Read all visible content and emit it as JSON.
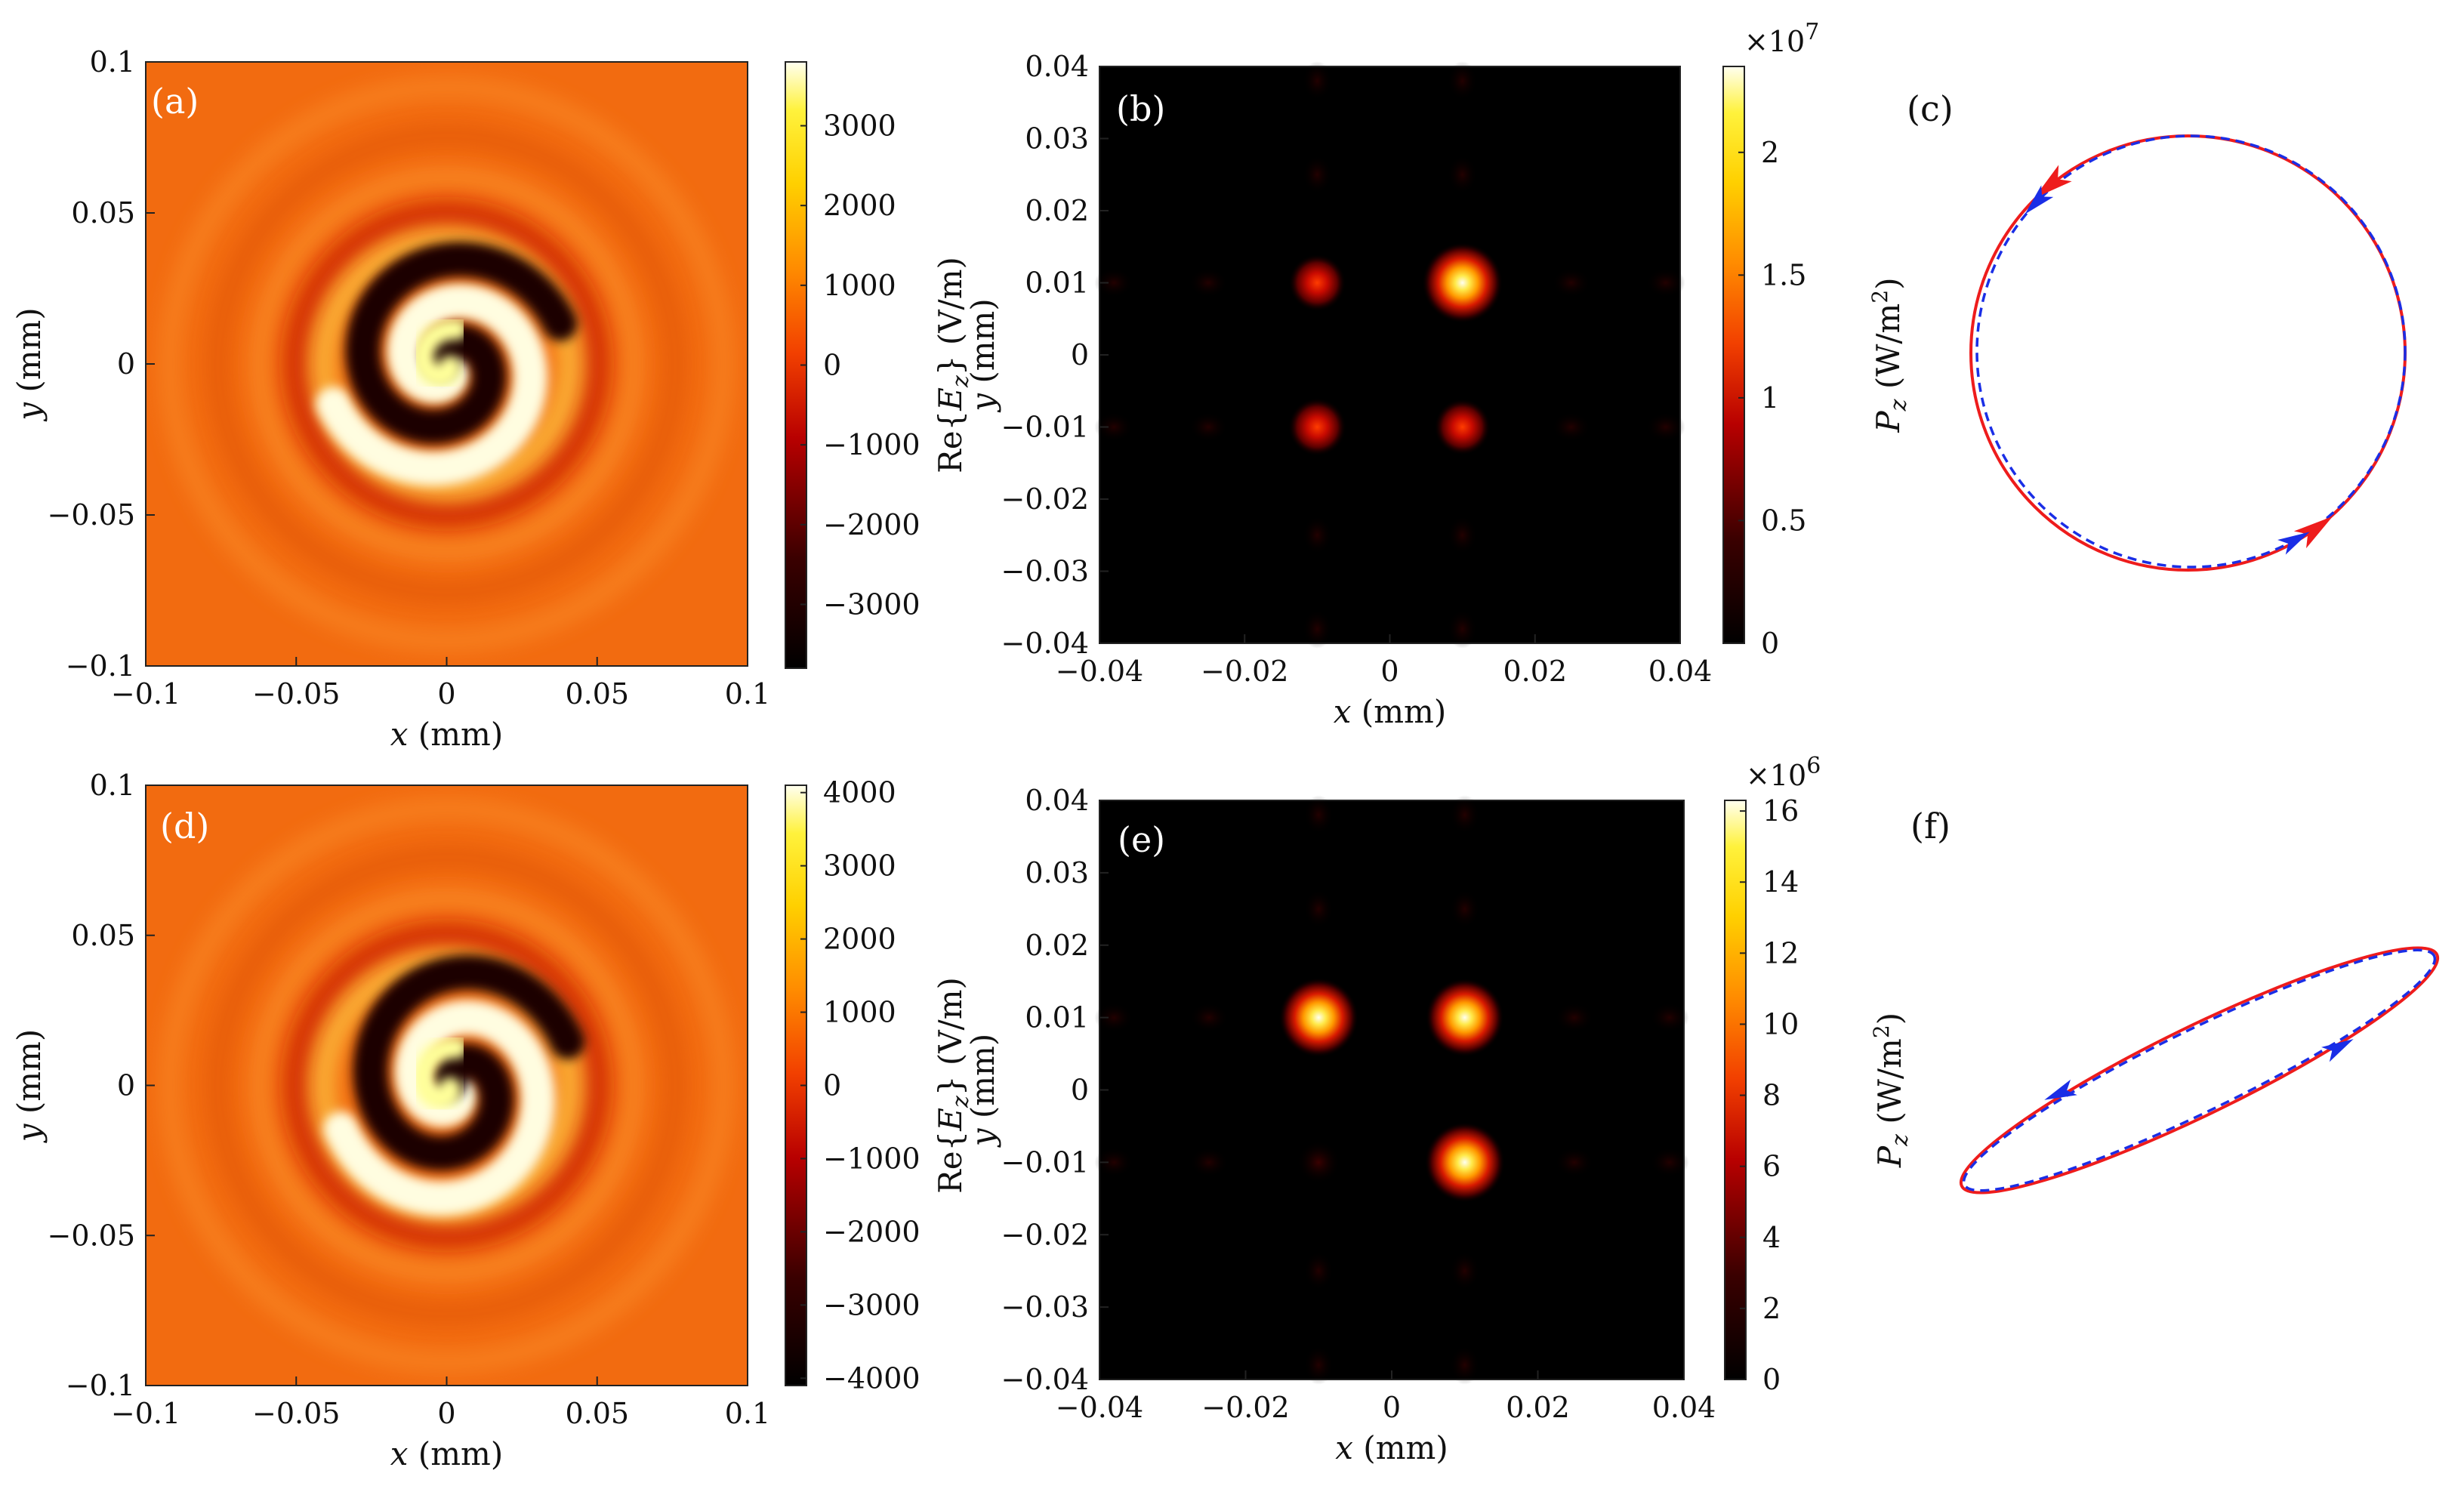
{
  "figure_id": "spiral-field-figure",
  "colors": {
    "ring_background": "#f26b10",
    "curve_red": "#ee1c1c",
    "curve_blue": "#1a2ee6",
    "heat_black": "#000000",
    "heat_white": "#fffff0"
  },
  "chart_data": [
    {
      "panel": "(a)",
      "type": "heatmap",
      "description_kind": "spiral_field_map",
      "title": "",
      "xlabel_var": "x",
      "xlabel_unit": " (mm)",
      "ylabel_var": "y",
      "ylabel_unit": " (mm)",
      "xlim": [
        -0.1,
        0.1
      ],
      "ylim": [
        -0.1,
        0.1
      ],
      "xticks": [
        "−0.1",
        "−0.05",
        "0",
        "0.05",
        "0.1"
      ],
      "yticks": [
        "0.1",
        "0.05",
        "0",
        "−0.05",
        "−0.1"
      ],
      "colorbar": {
        "label_pre": "Re{",
        "label_var": "E",
        "label_sub": "z",
        "label_post": "} (V/m)",
        "range": [
          -3800,
          3800
        ],
        "ticks": [
          "3000",
          "2000",
          "1000",
          "0",
          "−1000",
          "−2000",
          "−3000"
        ],
        "tick_values": [
          3000,
          2000,
          1000,
          0,
          -1000,
          -2000,
          -3000
        ]
      },
      "spiral": {
        "topological_charge": 1,
        "rotation": "counter-clockwise"
      }
    },
    {
      "panel": "(b)",
      "type": "heatmap",
      "description_kind": "intensity_spots",
      "xlabel_var": "x",
      "xlabel_unit": " (mm)",
      "ylabel_var": "y",
      "ylabel_unit": " (mm)",
      "xlim": [
        -0.04,
        0.04
      ],
      "ylim": [
        -0.04,
        0.04
      ],
      "xticks": [
        "−0.04",
        "−0.02",
        "0",
        "0.02",
        "0.04"
      ],
      "yticks": [
        "0.04",
        "0.03",
        "0.02",
        "0.01",
        "0",
        "−0.01",
        "−0.02",
        "−0.03",
        "−0.04"
      ],
      "colorbar": {
        "label_var": "P",
        "label_sub": "z",
        "label_post": " (W/m",
        "label_sup": "2",
        "label_close": ")",
        "multiplier_base": "×10",
        "multiplier_exp": "7",
        "range": [
          0,
          2.35
        ],
        "ticks": [
          "2",
          "1.5",
          "1",
          "0.5",
          "0"
        ],
        "tick_values": [
          2,
          1.5,
          1,
          0.5,
          0
        ]
      },
      "spots": [
        {
          "x": -0.01,
          "y": 0.01,
          "intensity": 0.9
        },
        {
          "x": 0.01,
          "y": 0.01,
          "intensity": 2.3
        },
        {
          "x": -0.01,
          "y": -0.01,
          "intensity": 0.95
        },
        {
          "x": 0.01,
          "y": -0.01,
          "intensity": 0.85
        }
      ]
    },
    {
      "panel": "(c)",
      "type": "line",
      "description_kind": "polarization_ellipse",
      "series": [
        {
          "name": "solid",
          "color": "#ee1c1c",
          "style": "solid",
          "shape": "circle",
          "direction": "counter-clockwise"
        },
        {
          "name": "dashed",
          "color": "#1a2ee6",
          "style": "dashed",
          "shape": "circle",
          "direction": "counter-clockwise"
        }
      ]
    },
    {
      "panel": "(d)",
      "type": "heatmap",
      "description_kind": "spiral_field_map",
      "xlabel_var": "x",
      "xlabel_unit": " (mm)",
      "ylabel_var": "y",
      "ylabel_unit": " (mm)",
      "xlim": [
        -0.1,
        0.1
      ],
      "ylim": [
        -0.1,
        0.1
      ],
      "xticks": [
        "−0.1",
        "−0.05",
        "0",
        "0.05",
        "0.1"
      ],
      "yticks": [
        "0.1",
        "0.05",
        "0",
        "−0.05",
        "−0.1"
      ],
      "colorbar": {
        "label_pre": "Re{",
        "label_var": "E",
        "label_sub": "z",
        "label_post": "} (V/m)",
        "range": [
          -4100,
          4100
        ],
        "ticks": [
          "4000",
          "3000",
          "2000",
          "1000",
          "0",
          "−1000",
          "−2000",
          "−3000",
          "−4000"
        ],
        "tick_values": [
          4000,
          3000,
          2000,
          1000,
          0,
          -1000,
          -2000,
          -3000,
          -4000
        ]
      },
      "spiral": {
        "topological_charge": 1,
        "rotation": "counter-clockwise",
        "asymmetric": true
      }
    },
    {
      "panel": "(e)",
      "type": "heatmap",
      "description_kind": "intensity_spots",
      "xlabel_var": "x",
      "xlabel_unit": " (mm)",
      "ylabel_var": "y",
      "ylabel_unit": " (mm)",
      "xlim": [
        -0.04,
        0.04
      ],
      "ylim": [
        -0.04,
        0.04
      ],
      "xticks": [
        "−0.04",
        "−0.02",
        "0",
        "0.02",
        "0.04"
      ],
      "yticks": [
        "0.04",
        "0.03",
        "0.02",
        "0.01",
        "0",
        "−0.01",
        "−0.02",
        "−0.03",
        "−0.04"
      ],
      "colorbar": {
        "label_var": "P",
        "label_sub": "z",
        "label_post": " (W/m",
        "label_sup": "2",
        "label_close": ")",
        "multiplier_base": "×10",
        "multiplier_exp": "6",
        "range": [
          0,
          16.3
        ],
        "ticks": [
          "16",
          "14",
          "12",
          "10",
          "8",
          "6",
          "4",
          "2",
          "0"
        ],
        "tick_values": [
          16,
          14,
          12,
          10,
          8,
          6,
          4,
          2,
          0
        ]
      },
      "spots": [
        {
          "x": -0.01,
          "y": 0.01,
          "intensity": 15.5
        },
        {
          "x": 0.01,
          "y": 0.01,
          "intensity": 15.0
        },
        {
          "x": 0.01,
          "y": -0.01,
          "intensity": 15.8
        },
        {
          "x": -0.01,
          "y": -0.01,
          "intensity": 0.4
        }
      ]
    },
    {
      "panel": "(f)",
      "type": "line",
      "description_kind": "polarization_ellipse",
      "series": [
        {
          "name": "solid",
          "color": "#ee1c1c",
          "style": "solid",
          "shape": "tilted-ellipse",
          "direction": "counter-clockwise"
        },
        {
          "name": "dashed",
          "color": "#1a2ee6",
          "style": "dashed",
          "shape": "tilted-ellipse",
          "direction": "counter-clockwise"
        }
      ]
    }
  ]
}
